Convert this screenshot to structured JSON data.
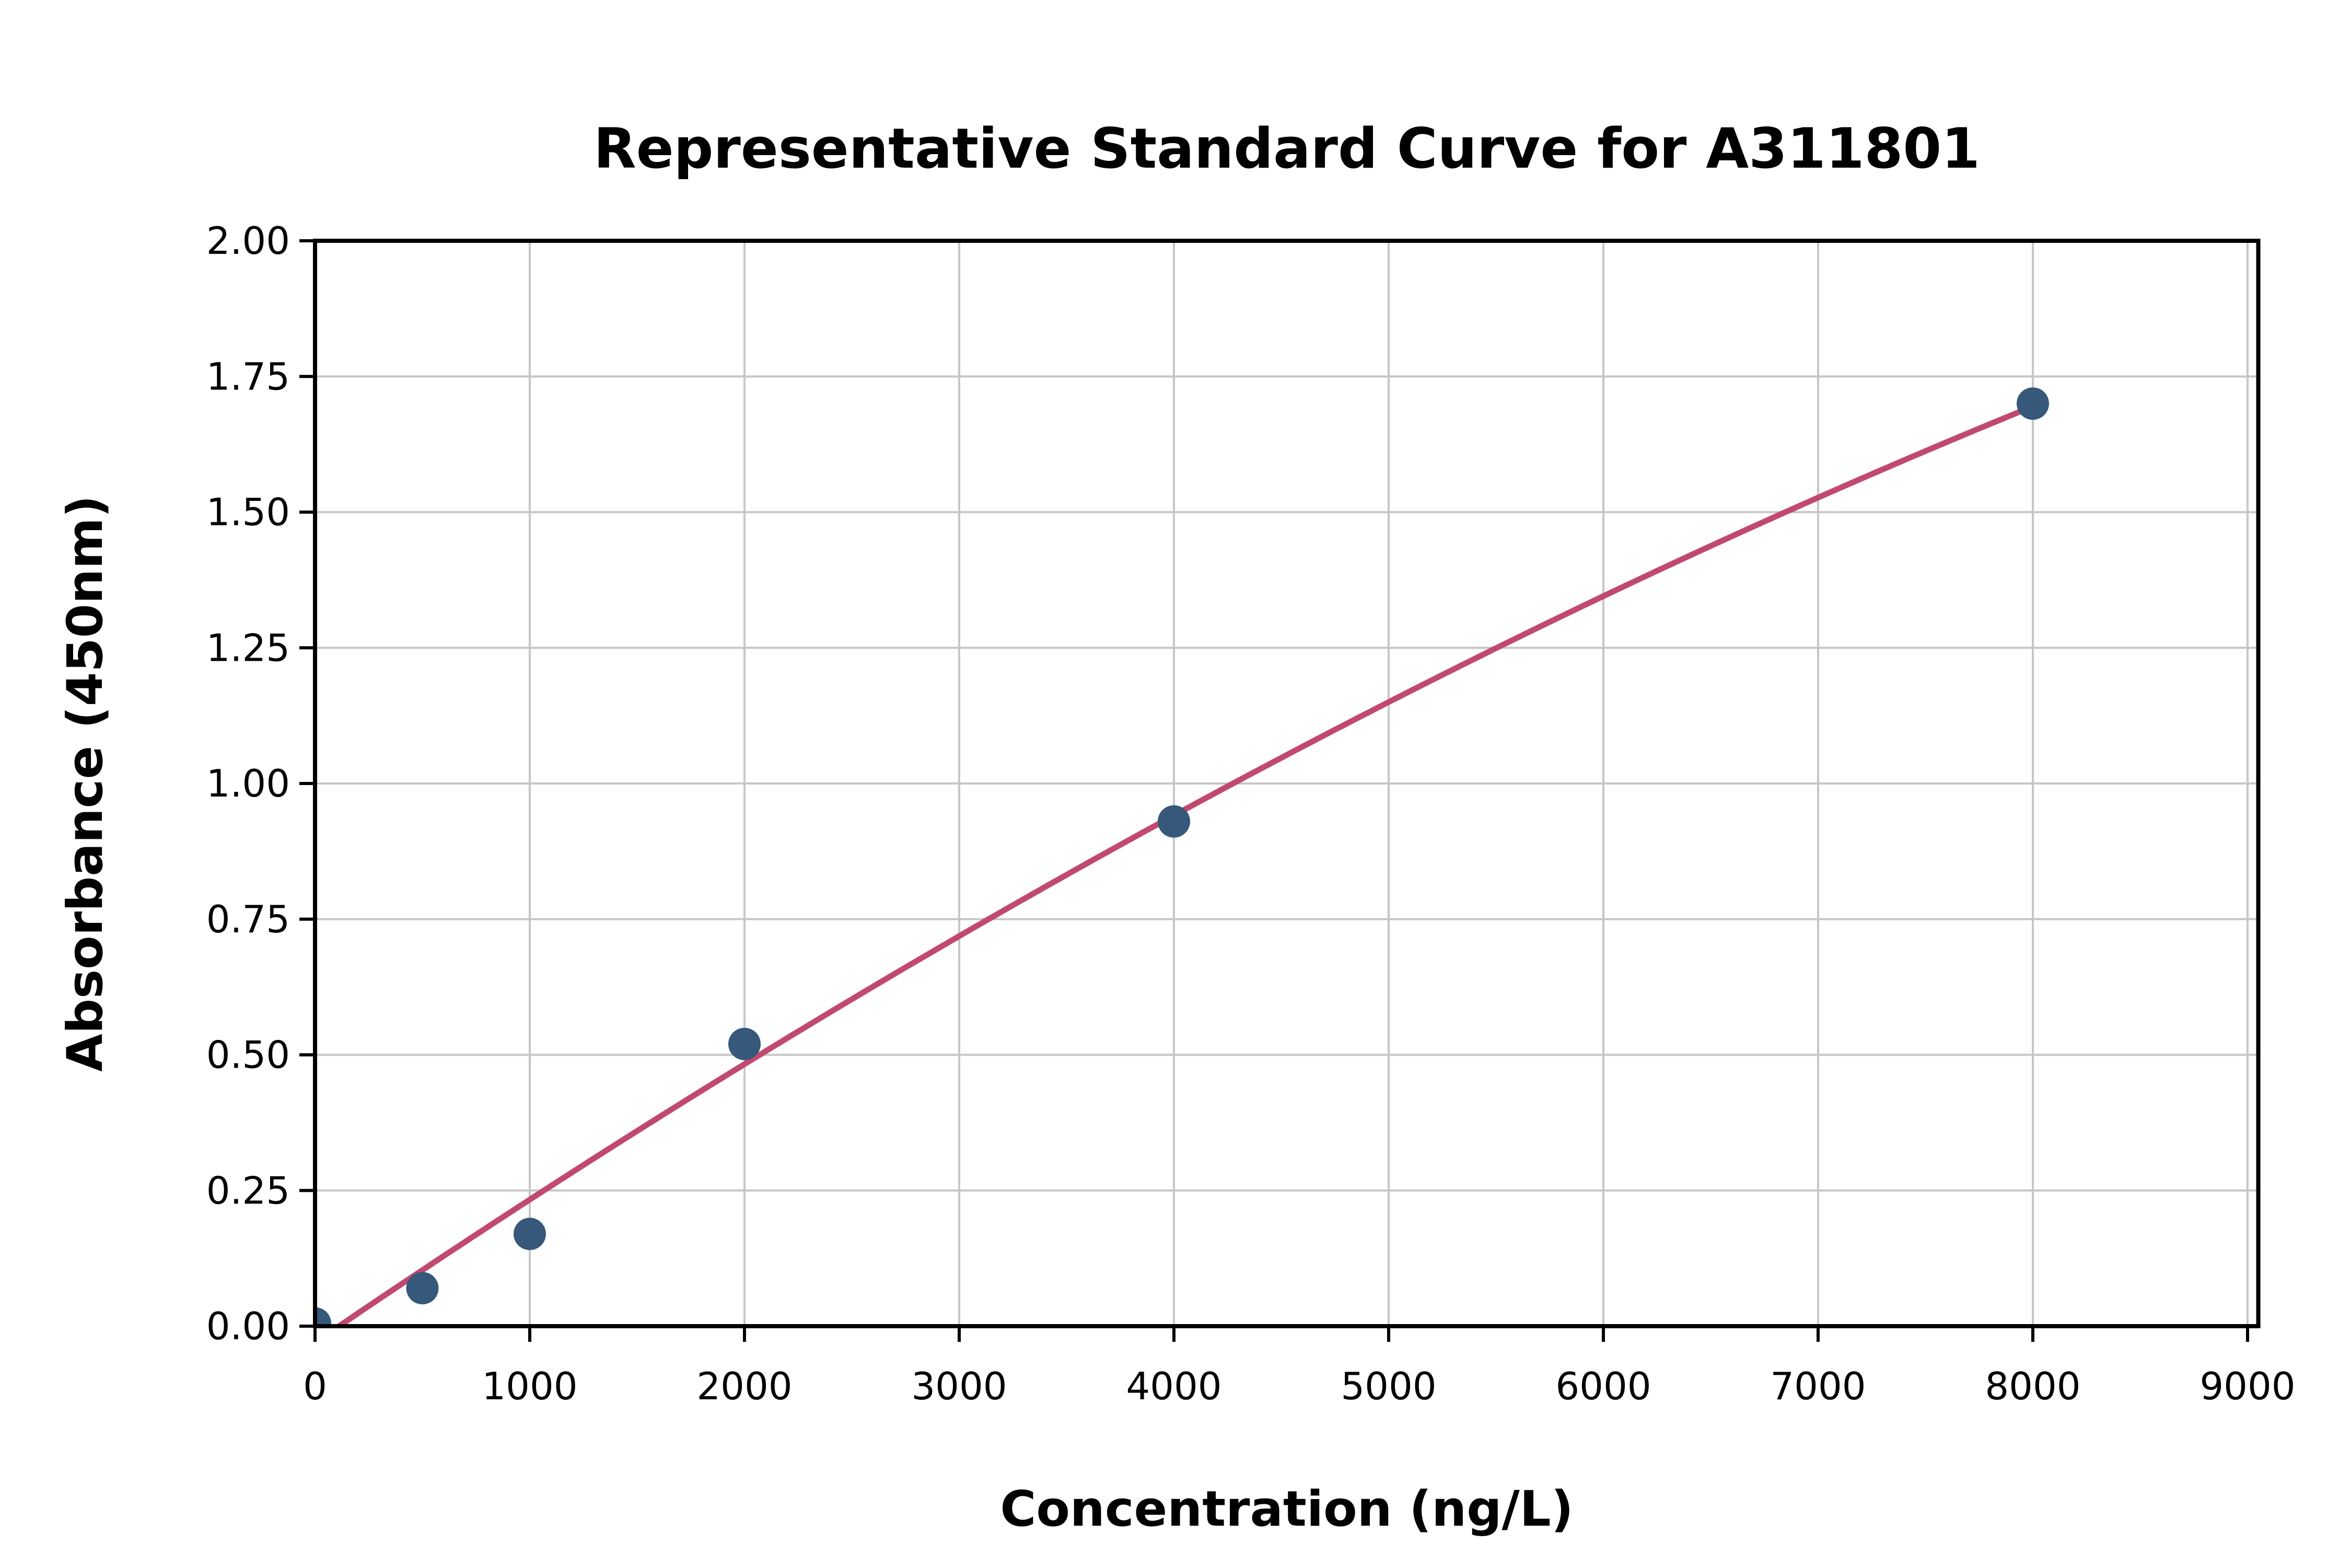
{
  "chart_data": {
    "type": "scatter",
    "title": "Representative Standard Curve for A311801",
    "xlabel": "Concentration (ng/L)",
    "ylabel": "Absorbance (450nm)",
    "xlim": [
      0,
      9050
    ],
    "ylim": [
      0,
      2.0
    ],
    "grid": true,
    "legend": "none",
    "x_ticks": [
      0,
      1000,
      2000,
      3000,
      4000,
      5000,
      6000,
      7000,
      8000,
      9000
    ],
    "x_tick_labels": [
      "0",
      "1000",
      "2000",
      "3000",
      "4000",
      "5000",
      "6000",
      "7000",
      "8000",
      "9000"
    ],
    "y_ticks": [
      0.0,
      0.25,
      0.5,
      0.75,
      1.0,
      1.25,
      1.5,
      1.75,
      2.0
    ],
    "y_tick_labels": [
      "0.00",
      "0.25",
      "0.50",
      "0.75",
      "1.00",
      "1.25",
      "1.50",
      "1.75",
      "2.00"
    ],
    "points": {
      "name": "standard-dilution-points",
      "x": [
        0,
        500,
        1000,
        2000,
        4000,
        8000
      ],
      "y": [
        0.005,
        0.07,
        0.17,
        0.52,
        0.93,
        1.7
      ]
    },
    "fit_curve": {
      "name": "fitted-standard-curve",
      "type": "quadratic",
      "coefficients": {
        "b0": -0.03,
        "b1": 0.00027,
        "b2": -6.8e-09
      },
      "x_start": 112,
      "x_end": 8000
    },
    "colors": {
      "marker": "#35587b",
      "curve": "#c1496f",
      "grid": "#c6c6c6",
      "axis": "#000000",
      "text": "#000000",
      "background": "#ffffff"
    }
  }
}
